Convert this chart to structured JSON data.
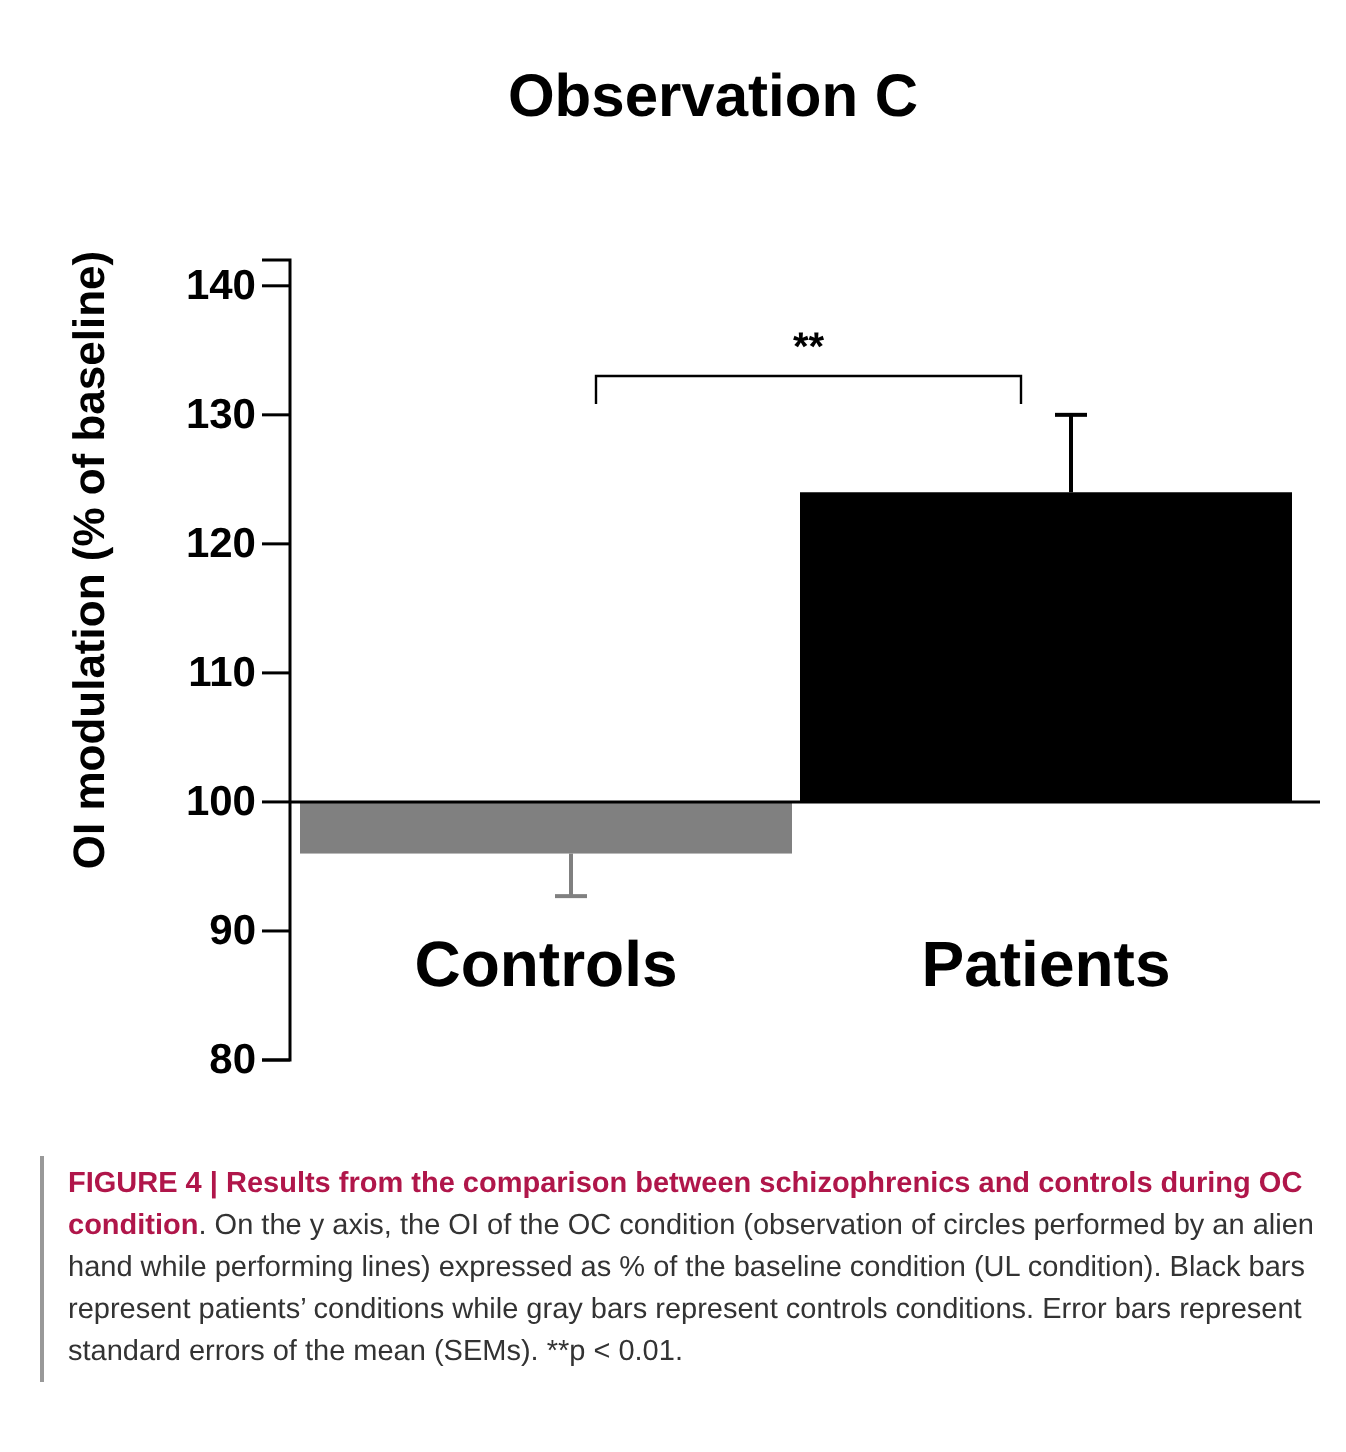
{
  "chart_data": {
    "type": "bar",
    "title": "Observation  C",
    "ylabel": "OI modulation (% of baseline)",
    "categories": [
      "Controls",
      "Patients"
    ],
    "base": [
      100,
      100
    ],
    "values": [
      -4,
      24
    ],
    "colors": [
      "#808080",
      "#000000"
    ],
    "errors": [
      3.3,
      6
    ],
    "ylim": [
      80,
      142
    ],
    "yticks": [
      80,
      90,
      100,
      110,
      120,
      130,
      140
    ],
    "grid": false,
    "annotations": [
      "**",
      "FIGURE 4 | Results from the comparison between schizophrenics and controls during OC condition",
      ". On the y axis, the OI of the OC condition (observation of circles performed by an alien hand while performing lines) expressed as % of the baseline condition (UL condition). Black bars represent patients’ conditions while gray bars represent controls conditions. Error bars represent standard errors of the mean (SEMs). **p < 0.01."
    ]
  }
}
